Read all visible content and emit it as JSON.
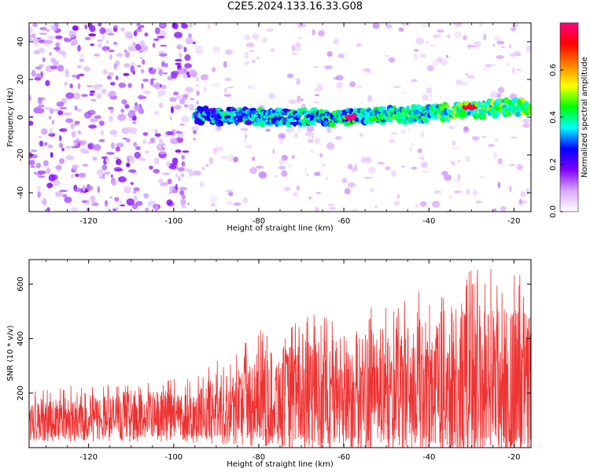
{
  "page": {
    "title": "C2E5.2024.133.16.33.G08"
  },
  "chart_data": [
    {
      "type": "heatmap",
      "title": "C2E5.2024.133.16.33.G08",
      "xlabel": "Height of straight line (km)",
      "ylabel": "Frequency (Hz)",
      "xlim": [
        -134,
        -16
      ],
      "ylim": [
        -50,
        50
      ],
      "x_ticks": [
        -120,
        -100,
        -80,
        -60,
        -40,
        -20
      ],
      "y_ticks": [
        -40,
        -20,
        0,
        20,
        40
      ],
      "colorbar": {
        "label": "Normalized spectral amplitude",
        "range": [
          0,
          0.8
        ],
        "ticks": [
          0.0,
          0.2,
          0.4,
          0.6
        ],
        "colors": [
          "#ffffff",
          "#d8a8ff",
          "#8000ff",
          "#0000ff",
          "#00ffff",
          "#00ff00",
          "#ffff00",
          "#ff8000",
          "#ff0000",
          "#ff0080"
        ]
      },
      "features": {
        "noise_region_x": [
          -134,
          -95
        ],
        "signal_line": [
          {
            "x": -95,
            "freq": 1
          },
          {
            "x": -80,
            "freq": 0
          },
          {
            "x": -60,
            "freq": 0
          },
          {
            "x": -40,
            "freq": 2
          },
          {
            "x": -30,
            "freq": 4
          },
          {
            "x": -16,
            "freq": 6
          }
        ],
        "peak": {
          "x": -58,
          "freq": 0,
          "amplitude": 0.8
        },
        "secondary_peak": {
          "x": -30,
          "freq": 5,
          "amplitude": 0.75
        }
      }
    },
    {
      "type": "line",
      "xlabel": "Height of straight line (km)",
      "ylabel": "SNR (10 * v/v)",
      "xlim": [
        -134,
        -16
      ],
      "ylim": [
        0,
        690
      ],
      "x_ticks": [
        -120,
        -100,
        -80,
        -60,
        -40,
        -20
      ],
      "y_ticks": [
        200,
        400,
        600
      ],
      "series_color": "#ee3333",
      "envelope": [
        {
          "x": -134,
          "low": 40,
          "high": 220
        },
        {
          "x": -110,
          "low": 40,
          "high": 240
        },
        {
          "x": -95,
          "low": 40,
          "high": 260
        },
        {
          "x": -80,
          "low": 40,
          "high": 430
        },
        {
          "x": -60,
          "low": 30,
          "high": 520
        },
        {
          "x": -45,
          "low": 20,
          "high": 560
        },
        {
          "x": -30,
          "low": 0,
          "high": 690
        },
        {
          "x": -16,
          "low": 20,
          "high": 630
        }
      ]
    }
  ]
}
